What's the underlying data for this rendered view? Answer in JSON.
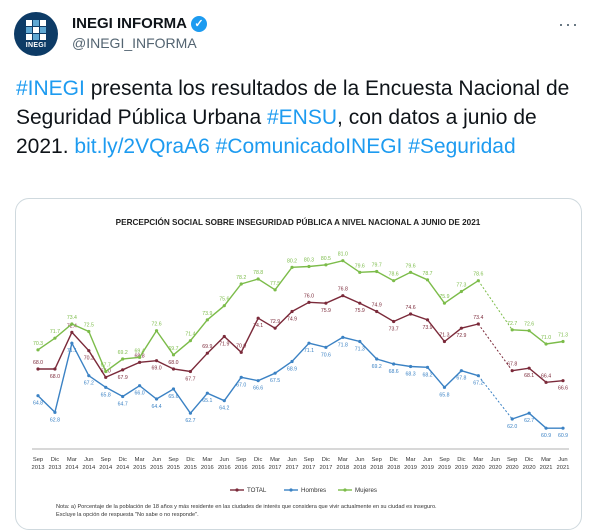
{
  "account": {
    "name": "INEGI INFORMA",
    "handle": "@INEGI_INFORMA",
    "avatar_text": "INEGI",
    "more_label": "···"
  },
  "tweet": {
    "segments": [
      {
        "text": "#INEGI",
        "link": true
      },
      {
        "text": " presenta los resultados de la Encuesta Nacional de Seguridad Pública Urbana ",
        "link": false
      },
      {
        "text": "#ENSU",
        "link": true
      },
      {
        "text": ", con datos a junio de 2021. ",
        "link": false
      },
      {
        "text": "bit.ly/2VQraA6",
        "link": true
      },
      {
        "text": " ",
        "link": false
      },
      {
        "text": "#ComunicadoINEGI",
        "link": true
      },
      {
        "text": " ",
        "link": false
      },
      {
        "text": "#Seguridad",
        "link": true
      }
    ]
  },
  "colors": {
    "total": "#7b2a3a",
    "hombres": "#3b82c4",
    "mujeres": "#7cbc4a",
    "link": "#1d9bf0"
  },
  "chart_data": {
    "type": "line",
    "title": "PERCEPCIÓN SOCIAL SOBRE INSEGURIDAD PÚBLICA A NIVEL NACIONAL A JUNIO DE 2021",
    "x": [
      [
        "Sep",
        "2013"
      ],
      [
        "Dic",
        "2013"
      ],
      [
        "Mar",
        "2014"
      ],
      [
        "Jun",
        "2014"
      ],
      [
        "Sep",
        "2014"
      ],
      [
        "Dic",
        "2014"
      ],
      [
        "Mar",
        "2015"
      ],
      [
        "Jun",
        "2015"
      ],
      [
        "Sep",
        "2015"
      ],
      [
        "Dic",
        "2015"
      ],
      [
        "Mar",
        "2016"
      ],
      [
        "Jun",
        "2016"
      ],
      [
        "Sep",
        "2016"
      ],
      [
        "Dic",
        "2016"
      ],
      [
        "Mar",
        "2017"
      ],
      [
        "Jun",
        "2017"
      ],
      [
        "Sep",
        "2017"
      ],
      [
        "Dic",
        "2017"
      ],
      [
        "Mar",
        "2018"
      ],
      [
        "Jun",
        "2018"
      ],
      [
        "Sep",
        "2018"
      ],
      [
        "Dic",
        "2018"
      ],
      [
        "Mar",
        "2019"
      ],
      [
        "Jun",
        "2019"
      ],
      [
        "Sep",
        "2019"
      ],
      [
        "Dic",
        "2019"
      ],
      [
        "Mar",
        "2020"
      ],
      [
        "Jun",
        "2020"
      ],
      [
        "Sep",
        "2020"
      ],
      [
        "Dic",
        "2020"
      ],
      [
        "Mar",
        "2021"
      ],
      [
        "Jun",
        "2021"
      ]
    ],
    "series": [
      {
        "name": "TOTAL",
        "values": [
          68.0,
          68.0,
          72.4,
          70.2,
          67.0,
          67.9,
          68.8,
          69.0,
          68.0,
          67.7,
          69.9,
          71.9,
          70.0,
          74.1,
          72.9,
          74.9,
          76.0,
          75.9,
          76.8,
          75.9,
          74.9,
          73.7,
          74.6,
          73.9,
          71.3,
          72.9,
          73.4,
          null,
          67.8,
          68.1,
          66.4,
          66.6
        ]
      },
      {
        "name": "Hombres",
        "values": [
          64.8,
          62.8,
          71.1,
          67.2,
          65.8,
          64.7,
          66.0,
          64.4,
          65.6,
          62.7,
          65.1,
          64.2,
          67.0,
          66.6,
          67.5,
          68.9,
          71.1,
          70.6,
          71.8,
          71.3,
          69.2,
          68.6,
          68.3,
          68.2,
          65.8,
          67.8,
          67.2,
          null,
          62.0,
          62.7,
          60.9,
          60.9
        ]
      },
      {
        "name": "Mujeres",
        "values": [
          70.3,
          71.7,
          73.4,
          72.5,
          67.7,
          69.2,
          69.4,
          72.6,
          69.7,
          71.4,
          73.9,
          75.6,
          78.2,
          78.8,
          77.5,
          80.2,
          80.3,
          80.5,
          81.0,
          79.6,
          79.7,
          78.6,
          79.6,
          78.7,
          75.9,
          77.3,
          78.6,
          null,
          72.7,
          72.6,
          71.0,
          71.3
        ]
      }
    ],
    "gap_after_index": 26,
    "ylim": [
      59,
      83
    ],
    "legend": [
      "TOTAL",
      "Hombres",
      "Mujeres"
    ],
    "legend_placement": "bottom",
    "note_lines": [
      "Nota: a) Porcentaje de la población de 18 años y más residente en las ciudades de interés que considera que vivir actualmente en su ciudad es inseguro.",
      "Excluye la opción de respuesta \"No sabe o no responde\"."
    ]
  }
}
